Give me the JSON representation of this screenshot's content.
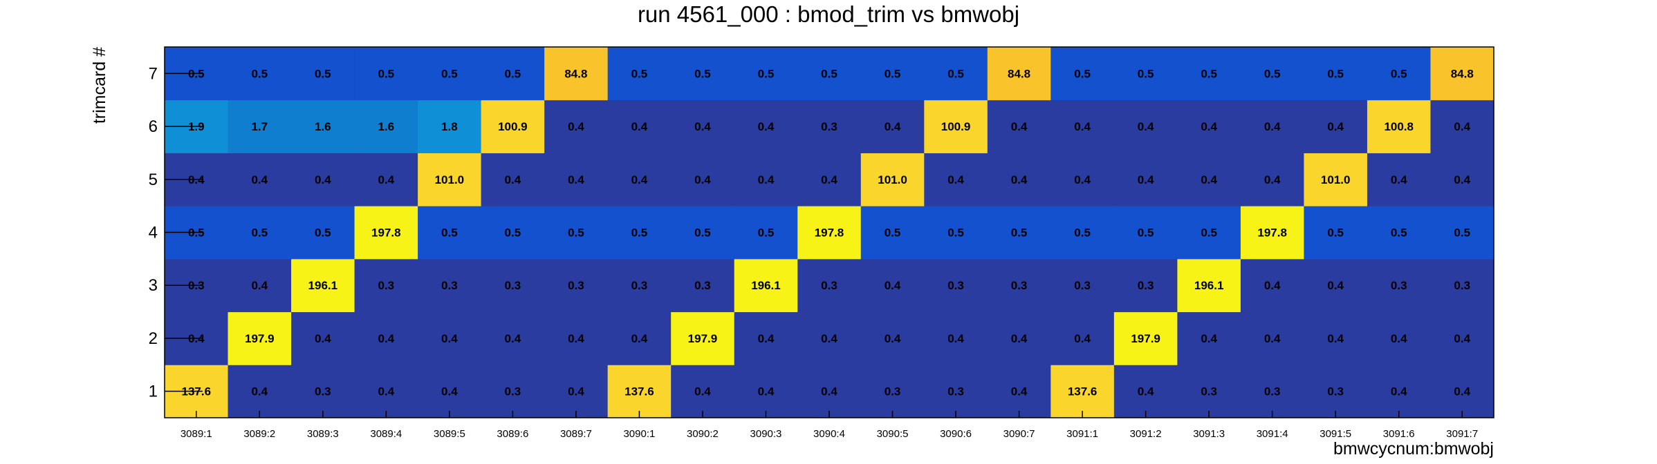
{
  "chart_data": {
    "type": "heatmap",
    "title": "run 4561_000 : bmod_trim vs bmwobj",
    "xlabel": "bmwcycnum:bmwobj",
    "ylabel": "trimcard #",
    "x_categories": [
      "3089:1",
      "3089:2",
      "3089:3",
      "3089:4",
      "3089:5",
      "3089:6",
      "3089:7",
      "3090:1",
      "3090:2",
      "3090:3",
      "3090:4",
      "3090:5",
      "3090:6",
      "3090:7",
      "3091:1",
      "3091:2",
      "3091:3",
      "3091:4",
      "3091:5",
      "3091:6",
      "3091:7"
    ],
    "y_categories": [
      "1",
      "2",
      "3",
      "4",
      "5",
      "6",
      "7"
    ],
    "values": [
      [
        137.6,
        0.4,
        0.3,
        0.4,
        0.4,
        0.3,
        0.4,
        137.6,
        0.4,
        0.4,
        0.4,
        0.3,
        0.3,
        0.4,
        137.6,
        0.4,
        0.3,
        0.3,
        0.3,
        0.4,
        0.4
      ],
      [
        0.4,
        197.9,
        0.4,
        0.4,
        0.4,
        0.4,
        0.4,
        0.4,
        197.9,
        0.4,
        0.4,
        0.4,
        0.4,
        0.4,
        0.4,
        197.9,
        0.4,
        0.4,
        0.4,
        0.4,
        0.4
      ],
      [
        0.3,
        0.4,
        196.1,
        0.3,
        0.3,
        0.3,
        0.3,
        0.3,
        0.3,
        196.1,
        0.3,
        0.4,
        0.3,
        0.3,
        0.3,
        0.3,
        196.1,
        0.4,
        0.4,
        0.3,
        0.3
      ],
      [
        0.5,
        0.5,
        0.5,
        197.8,
        0.5,
        0.5,
        0.5,
        0.5,
        0.5,
        0.5,
        197.8,
        0.5,
        0.5,
        0.5,
        0.5,
        0.5,
        0.5,
        197.8,
        0.5,
        0.5,
        0.5
      ],
      [
        0.4,
        0.4,
        0.4,
        0.4,
        101.0,
        0.4,
        0.4,
        0.4,
        0.4,
        0.4,
        0.4,
        101.0,
        0.4,
        0.4,
        0.4,
        0.4,
        0.4,
        0.4,
        101.0,
        0.4,
        0.4
      ],
      [
        1.9,
        1.7,
        1.6,
        1.6,
        1.8,
        100.9,
        0.4,
        0.4,
        0.4,
        0.4,
        0.3,
        0.4,
        100.9,
        0.4,
        0.4,
        0.4,
        0.4,
        0.4,
        0.4,
        100.8,
        0.4
      ],
      [
        0.5,
        0.5,
        0.5,
        0.5,
        0.5,
        0.5,
        84.8,
        0.5,
        0.5,
        0.5,
        0.5,
        0.5,
        0.5,
        84.8,
        0.5,
        0.5,
        0.5,
        0.5,
        0.5,
        0.5,
        84.8
      ]
    ],
    "label_precision": 1,
    "colors": {
      "c_0_3": "#2a3c9f",
      "c_0_4": "#2a3c9f",
      "c_0_5": "#1451cf",
      "c_1_6": "#0f7ecf",
      "c_1_9": "#0f8fd6",
      "c_84": "#f9c42b",
      "c_100": "#fad52c",
      "c_137": "#fad52c",
      "c_196": "#f7f316",
      "frame": "#000000"
    },
    "grid": false,
    "legend": "none"
  }
}
